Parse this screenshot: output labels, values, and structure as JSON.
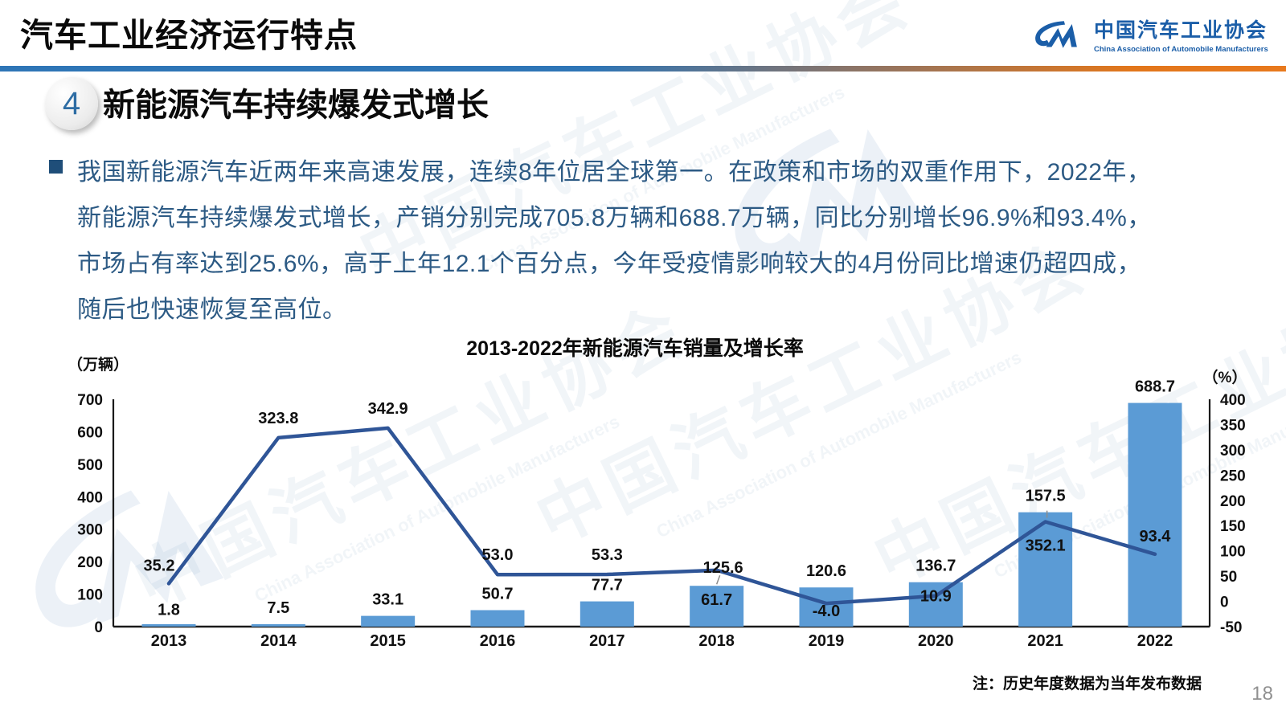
{
  "header": {
    "title": "汽车工业经济运行特点",
    "logo": {
      "org_cn": "中国汽车工业协会",
      "org_en": "China Association of Automobile Manufacturers"
    }
  },
  "section": {
    "number": "4",
    "heading": "新能源汽车持续爆发式增长"
  },
  "body": {
    "lines": [
      "我国新能源汽车近两年来高速发展，连续8年位居全球第一。在政策和市场的双重作用下，2022年，",
      "新能源汽车持续爆发式增长，产销分别完成705.8万辆和688.7万辆，同比分别增长96.9%和93.4%，",
      "市场占有率达到25.6%，高于上年12.1个百分点，今年受疫情影响较大的4月份同比增速仍超四成，",
      "随后也快速恢复至高位。"
    ]
  },
  "chart_data": {
    "type": "bar+line",
    "title": "2013-2022年新能源汽车销量及增长率",
    "categories": [
      "2013",
      "2014",
      "2015",
      "2016",
      "2017",
      "2018",
      "2019",
      "2020",
      "2021",
      "2022"
    ],
    "series": [
      {
        "name": "销量",
        "type": "bar",
        "axis": "left",
        "unit": "万辆",
        "color": "#5B9BD5",
        "values": [
          1.8,
          7.5,
          33.1,
          50.7,
          77.7,
          125.6,
          120.6,
          136.7,
          352.1,
          688.7
        ]
      },
      {
        "name": "增长率",
        "type": "line",
        "axis": "right",
        "unit": "%",
        "color": "#2F5597",
        "values": [
          35.2,
          323.8,
          342.9,
          53.0,
          53.3,
          61.7,
          -4.0,
          10.9,
          157.5,
          93.4
        ]
      }
    ],
    "left_axis": {
      "label": "（万辆）",
      "min": 0,
      "max": 700,
      "step": 100
    },
    "right_axis": {
      "label": "（%）",
      "min": -50,
      "max": 400,
      "step": 50
    },
    "grid": false,
    "legend": "none",
    "label_hints": {
      "bar": [
        "above",
        "above",
        "above",
        "above",
        "above",
        "above-leader",
        "above",
        "above",
        "deep-inside",
        "above"
      ],
      "line": [
        "above-left",
        "above",
        "above",
        "above",
        "above",
        "inside-below",
        "bottom-inside",
        "inside-below",
        "above-bar-leader",
        "above-point"
      ]
    }
  },
  "footer": {
    "note": "注：历史年度数据为当年发布数据",
    "page_number": "18"
  },
  "watermark": {
    "text_cn": "中国汽车工业协会",
    "text_en": "China Association of Automobile Manufacturers"
  },
  "colors": {
    "divider_start": "#2E75B6",
    "divider_end": "#E8791D",
    "bar": "#5B9BD5",
    "line": "#2F5597",
    "body_text": "#2C5A84",
    "accent_blue": "#1B5EA8"
  }
}
